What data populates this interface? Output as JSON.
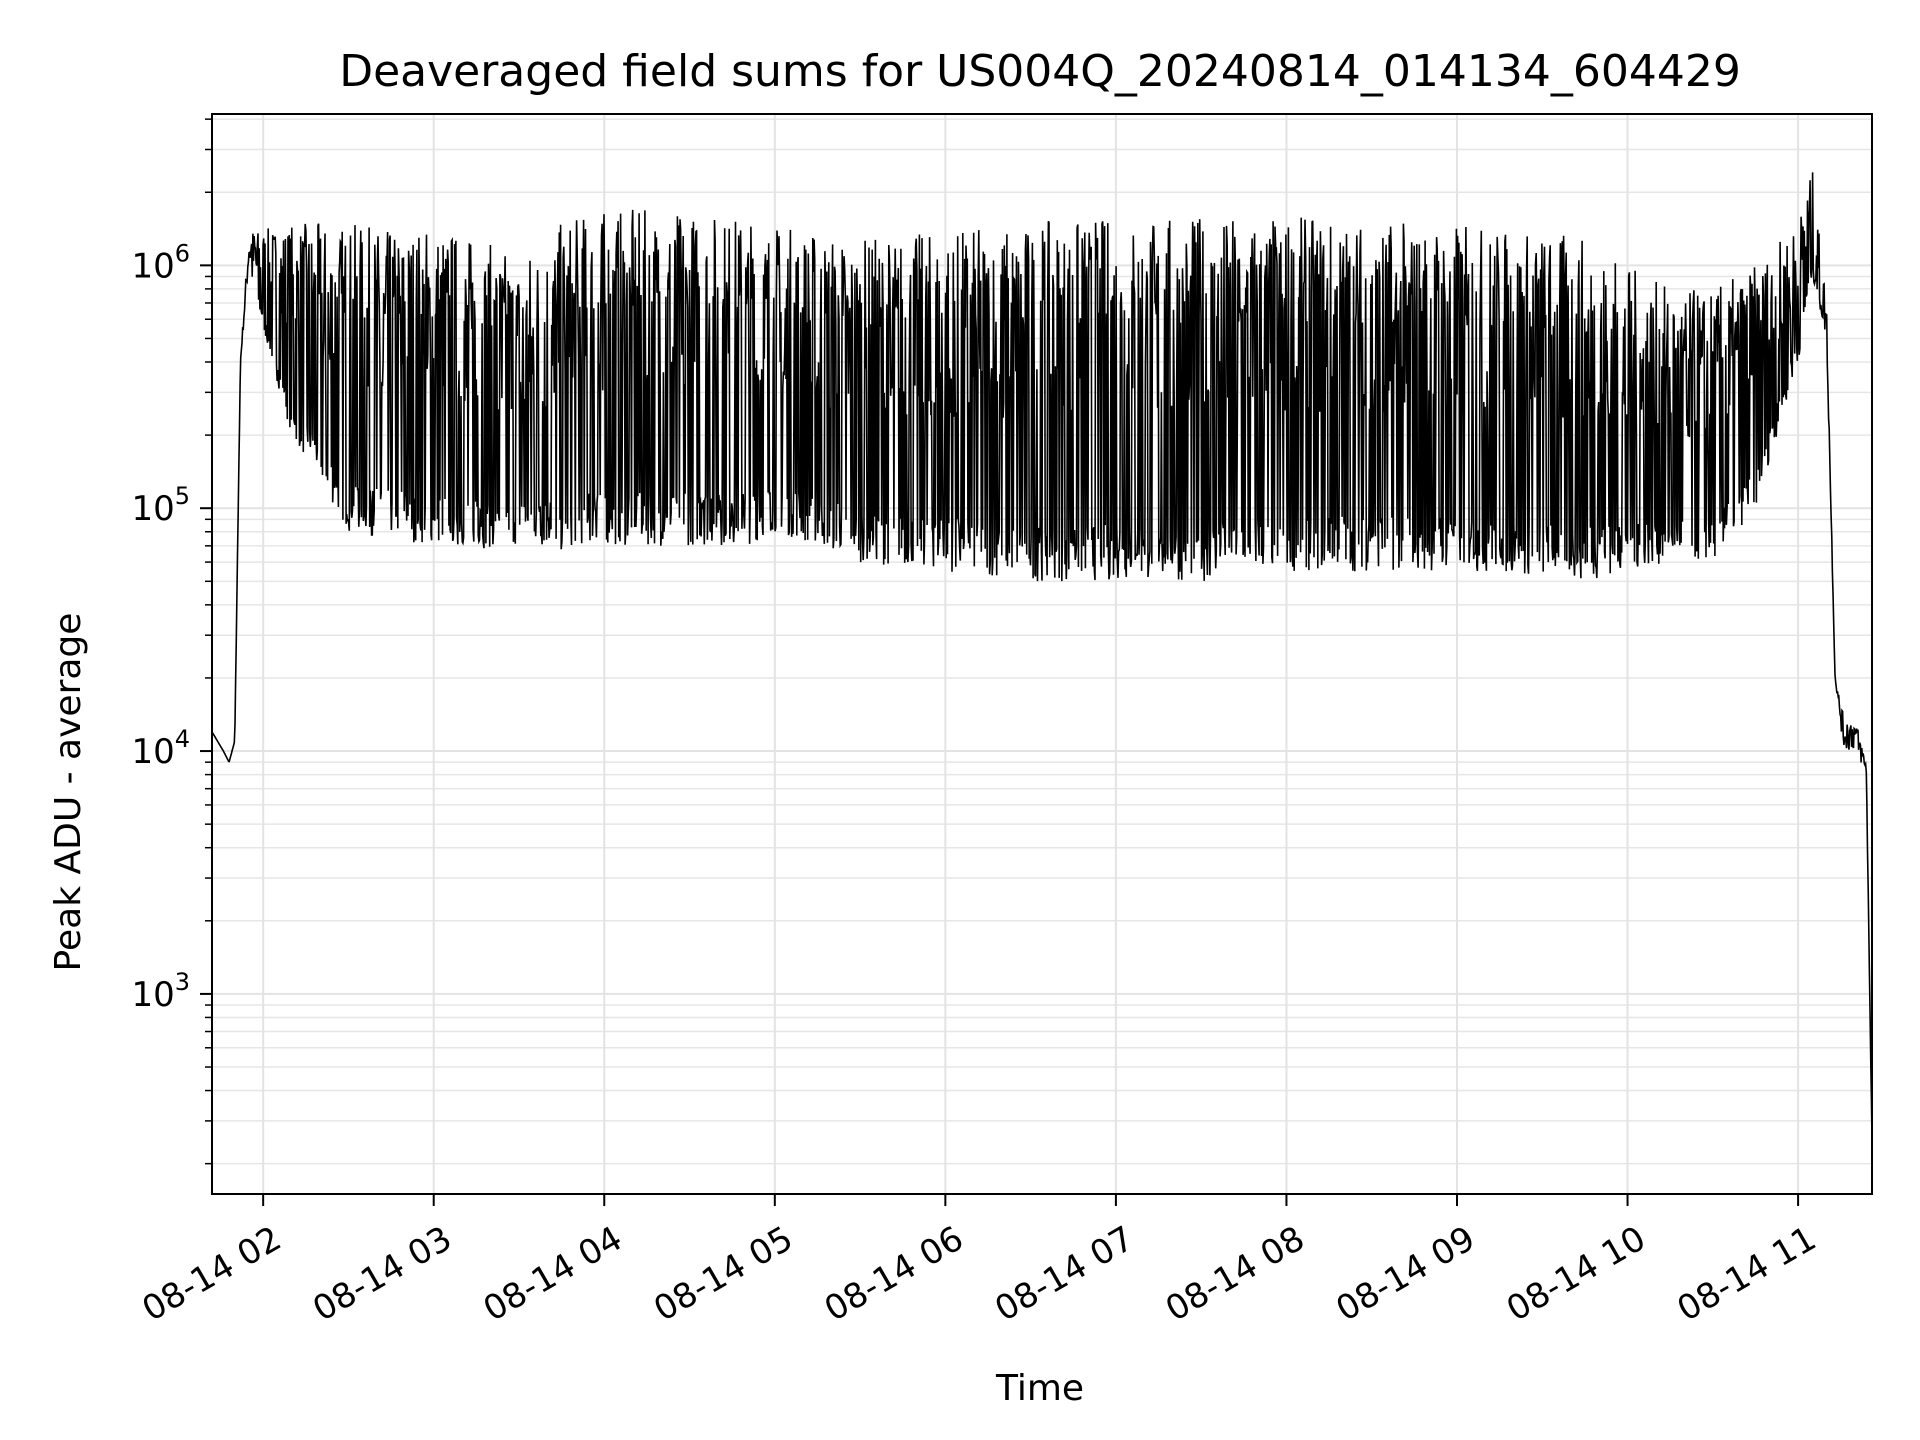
{
  "chart_data": {
    "type": "line",
    "title": "Deaveraged field sums for US004Q_20240814_014134_604429",
    "xlabel": "Time",
    "ylabel": "Peak ADU - average",
    "yscale": "log",
    "ylim": [
      150,
      4200000
    ],
    "xlim": [
      "2024-08-14 01:42",
      "2024-08-14 11:26"
    ],
    "grid": true,
    "x_ticks": [
      {
        "label": "08-14 02",
        "time": "2024-08-14 02:00"
      },
      {
        "label": "08-14 03",
        "time": "2024-08-14 03:00"
      },
      {
        "label": "08-14 04",
        "time": "2024-08-14 04:00"
      },
      {
        "label": "08-14 05",
        "time": "2024-08-14 05:00"
      },
      {
        "label": "08-14 06",
        "time": "2024-08-14 06:00"
      },
      {
        "label": "08-14 07",
        "time": "2024-08-14 07:00"
      },
      {
        "label": "08-14 08",
        "time": "2024-08-14 08:00"
      },
      {
        "label": "08-14 09",
        "time": "2024-08-14 09:00"
      },
      {
        "label": "08-14 10",
        "time": "2024-08-14 10:00"
      },
      {
        "label": "08-14 11",
        "time": "2024-08-14 11:00"
      }
    ],
    "y_ticks": [
      {
        "base": "10",
        "exp": "3",
        "value": 1000
      },
      {
        "base": "10",
        "exp": "4",
        "value": 10000
      },
      {
        "base": "10",
        "exp": "5",
        "value": 100000
      },
      {
        "base": "10",
        "exp": "6",
        "value": 1000000
      }
    ],
    "series": [
      {
        "color": "#000000",
        "note_envelope": "rapidly oscillating trace between lower and upper envelope",
        "x": [
          "2024-08-14 01:42",
          "2024-08-14 01:46",
          "2024-08-14 01:48",
          "2024-08-14 01:50",
          "2024-08-14 01:52",
          "2024-08-14 01:55",
          "2024-08-14 01:59",
          "2024-08-14 02:10",
          "2024-08-14 02:30",
          "2024-08-14 02:45",
          "2024-08-14 03:00",
          "2024-08-14 03:15",
          "2024-08-14 03:30",
          "2024-08-14 03:45",
          "2024-08-14 03:50",
          "2024-08-14 04:00",
          "2024-08-14 04:30",
          "2024-08-14 04:50",
          "2024-08-14 05:00",
          "2024-08-14 05:30",
          "2024-08-14 06:00",
          "2024-08-14 06:30",
          "2024-08-14 07:00",
          "2024-08-14 07:30",
          "2024-08-14 08:00",
          "2024-08-14 08:30",
          "2024-08-14 09:00",
          "2024-08-14 09:30",
          "2024-08-14 09:45",
          "2024-08-14 10:00",
          "2024-08-14 10:15",
          "2024-08-14 10:30",
          "2024-08-14 10:45",
          "2024-08-14 11:00",
          "2024-08-14 11:05",
          "2024-08-14 11:10",
          "2024-08-14 11:13",
          "2024-08-14 11:16",
          "2024-08-14 11:20",
          "2024-08-14 11:24",
          "2024-08-14 11:26"
        ],
        "low": [
          12000,
          10000,
          9000,
          11000,
          400000,
          1000000,
          600000,
          200000,
          80000,
          75000,
          70000,
          68000,
          70000,
          65000,
          70000,
          70000,
          70000,
          70000,
          80000,
          60000,
          55000,
          50000,
          50000,
          50000,
          55000,
          55000,
          55000,
          52000,
          50000,
          55000,
          60000,
          60000,
          100000,
          400000,
          900000,
          500000,
          20000,
          10000,
          10000,
          8000,
          250
        ],
        "high": [
          12000,
          10000,
          9000,
          11000,
          400000,
          1400000,
          1400000,
          1500000,
          1500000,
          1400000,
          1500000,
          1300000,
          1100000,
          1500000,
          1600000,
          1700000,
          1700000,
          1600000,
          1500000,
          1300000,
          1400000,
          1500000,
          1600000,
          1600000,
          1600000,
          1550000,
          1500000,
          1400000,
          1300000,
          1000000,
          800000,
          800000,
          1000000,
          1500000,
          2500000,
          700000,
          20000,
          14000,
          14000,
          9000,
          250
        ]
      }
    ]
  }
}
